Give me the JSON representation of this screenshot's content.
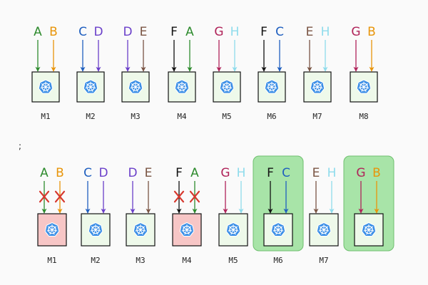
{
  "stray_mark": ";",
  "rows": [
    {
      "machines": [
        {
          "label": "M1",
          "state": "normal",
          "inputs": [
            {
              "letter": "A",
              "color": "#2e8b2e",
              "blocked": false
            },
            {
              "letter": "B",
              "color": "#e8950a",
              "blocked": false
            }
          ]
        },
        {
          "label": "M2",
          "state": "normal",
          "inputs": [
            {
              "letter": "C",
              "color": "#1f5fbf",
              "blocked": false
            },
            {
              "letter": "D",
              "color": "#6a3fc9",
              "blocked": false
            }
          ]
        },
        {
          "label": "M3",
          "state": "normal",
          "inputs": [
            {
              "letter": "D",
              "color": "#6a3fc9",
              "blocked": false
            },
            {
              "letter": "E",
              "color": "#7a5544",
              "blocked": false
            }
          ]
        },
        {
          "label": "M4",
          "state": "normal",
          "inputs": [
            {
              "letter": "F",
              "color": "#111111",
              "blocked": false
            },
            {
              "letter": "A",
              "color": "#2e8b2e",
              "blocked": false
            }
          ]
        },
        {
          "label": "M5",
          "state": "normal",
          "inputs": [
            {
              "letter": "G",
              "color": "#b0245a",
              "blocked": false
            },
            {
              "letter": "H",
              "color": "#8fdcec",
              "blocked": false
            }
          ]
        },
        {
          "label": "M6",
          "state": "normal",
          "inputs": [
            {
              "letter": "F",
              "color": "#111111",
              "blocked": false
            },
            {
              "letter": "C",
              "color": "#1f5fbf",
              "blocked": false
            }
          ]
        },
        {
          "label": "M7",
          "state": "normal",
          "inputs": [
            {
              "letter": "E",
              "color": "#7a5544",
              "blocked": false
            },
            {
              "letter": "H",
              "color": "#8fdcec",
              "blocked": false
            }
          ]
        },
        {
          "label": "M8",
          "state": "normal",
          "inputs": [
            {
              "letter": "G",
              "color": "#b0245a",
              "blocked": false
            },
            {
              "letter": "B",
              "color": "#e8950a",
              "blocked": false
            }
          ]
        }
      ]
    },
    {
      "machines": [
        {
          "label": "M1",
          "state": "failed",
          "inputs": [
            {
              "letter": "A",
              "color": "#2e8b2e",
              "blocked": true
            },
            {
              "letter": "B",
              "color": "#e8950a",
              "blocked": true
            }
          ]
        },
        {
          "label": "M2",
          "state": "normal",
          "inputs": [
            {
              "letter": "C",
              "color": "#1f5fbf",
              "blocked": false
            },
            {
              "letter": "D",
              "color": "#6a3fc9",
              "blocked": false
            }
          ]
        },
        {
          "label": "M3",
          "state": "normal",
          "inputs": [
            {
              "letter": "D",
              "color": "#6a3fc9",
              "blocked": false
            },
            {
              "letter": "E",
              "color": "#7a5544",
              "blocked": false
            }
          ]
        },
        {
          "label": "M4",
          "state": "failed",
          "inputs": [
            {
              "letter": "F",
              "color": "#111111",
              "blocked": true
            },
            {
              "letter": "A",
              "color": "#2e8b2e",
              "blocked": true
            }
          ]
        },
        {
          "label": "M5",
          "state": "normal",
          "inputs": [
            {
              "letter": "G",
              "color": "#b0245a",
              "blocked": false
            },
            {
              "letter": "H",
              "color": "#8fdcec",
              "blocked": false
            }
          ]
        },
        {
          "label": "M6",
          "state": "highlighted",
          "inputs": [
            {
              "letter": "F",
              "color": "#111111",
              "blocked": false
            },
            {
              "letter": "C",
              "color": "#1f5fbf",
              "blocked": false
            }
          ]
        },
        {
          "label": "M7",
          "state": "normal",
          "inputs": [
            {
              "letter": "E",
              "color": "#7a5544",
              "blocked": false
            },
            {
              "letter": "H",
              "color": "#8fdcec",
              "blocked": false
            }
          ]
        },
        {
          "label": "",
          "state": "highlighted",
          "inputs": [
            {
              "letter": "G",
              "color": "#b0245a",
              "blocked": false
            },
            {
              "letter": "B",
              "color": "#e8950a",
              "blocked": false
            }
          ]
        }
      ]
    }
  ],
  "colors": {
    "box_normal_fill": "#eef9ea",
    "box_failed_fill": "#f7c6c6",
    "highlight_fill": "#a8e4a8",
    "highlight_stroke": "#6fbf6f",
    "block_mark": "#d6382e",
    "logo_fill": "#3a8ee6"
  },
  "icons": {
    "machine": "kubernetes-helm-icon",
    "blocked": "red-x-mark"
  }
}
